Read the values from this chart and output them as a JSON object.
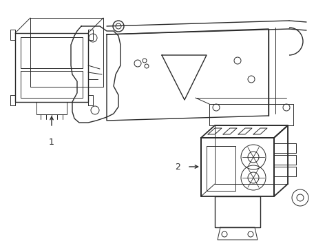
{
  "bg_color": "#ffffff",
  "line_color": "#2a2a2a",
  "lw_thin": 0.7,
  "lw_med": 1.0,
  "lw_thick": 1.3,
  "fig_width": 4.89,
  "fig_height": 3.6,
  "dpi": 100
}
